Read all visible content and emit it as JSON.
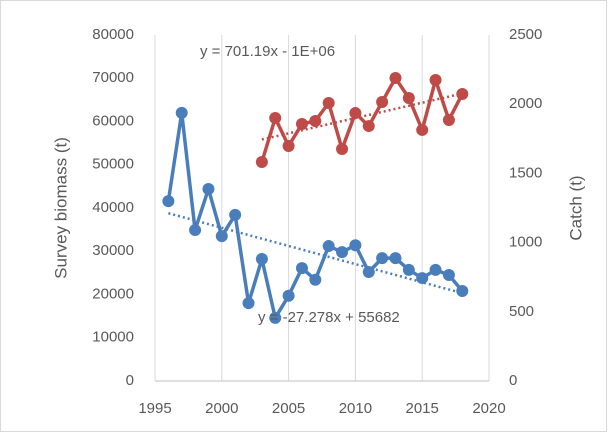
{
  "chart_data": {
    "type": "line",
    "ylabel": "Survey biomass (t)",
    "y2label": "Catch (t)",
    "annotations": [
      "y = 701.19x - 1E+06",
      "y = -27.278x + 55682"
    ],
    "xlim": [
      1995,
      2020
    ],
    "xticks": [
      1995,
      2000,
      2005,
      2010,
      2015,
      2020
    ],
    "ylim": [
      0,
      80000
    ],
    "yticks": [
      0,
      10000,
      20000,
      30000,
      40000,
      50000,
      60000,
      70000,
      80000
    ],
    "y2lim": [
      0,
      2500
    ],
    "y2ticks": [
      0,
      500,
      1000,
      1500,
      2000,
      2500
    ],
    "grid": "x",
    "trendline": true,
    "series": [
      {
        "color": "#4a7ebb",
        "axis": "y",
        "x": [
          1996,
          1997,
          1998,
          1999,
          2000,
          2001,
          2002,
          2003,
          2004,
          2005,
          2006,
          2007,
          2008,
          2009,
          2010,
          2011,
          2012,
          2013,
          2014,
          2015,
          2016,
          2017,
          2018
        ],
        "values": [
          41600,
          62000,
          34900,
          44400,
          33500,
          38400,
          18000,
          28200,
          14600,
          19700,
          26100,
          23400,
          31200,
          29800,
          31400,
          25200,
          28400,
          28400,
          25700,
          23800,
          25700,
          24500,
          20800
        ]
      },
      {
        "color": "#be4b48",
        "axis": "y2",
        "x": [
          2003,
          2004,
          2005,
          2006,
          2007,
          2008,
          2009,
          2010,
          2011,
          2012,
          2013,
          2014,
          2015,
          2016,
          2017,
          2018
        ],
        "values": [
          1582,
          1900,
          1698,
          1857,
          1879,
          2009,
          1676,
          1936,
          1842,
          2016,
          2189,
          2045,
          1814,
          2175,
          1886,
          2074
        ]
      }
    ]
  }
}
